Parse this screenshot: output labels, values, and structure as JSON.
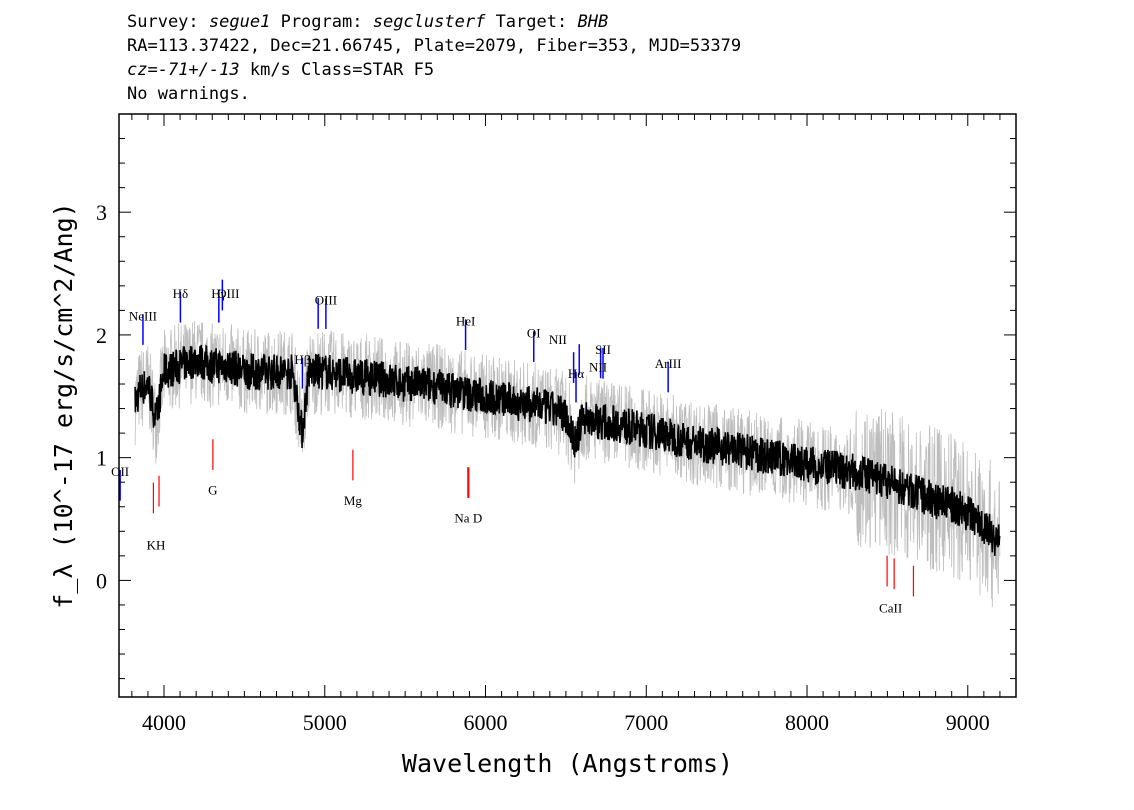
{
  "header": {
    "survey_label": "Survey:",
    "survey": "segue1",
    "program_label": "Program:",
    "program": "segclusterf",
    "target_label": "Target:",
    "target": "BHB",
    "line2": "RA=113.37422, Dec=21.66745, Plate=2079, Fiber=353, MJD=53379",
    "cz_label": "cz=",
    "cz_value": "-71+/-13",
    "cz_rest": " km/s Class=STAR F5",
    "line4": "No warnings."
  },
  "colors": {
    "flux": "#000000",
    "noise": "#bdbdbd",
    "emission": "#0000ff",
    "absorption": "#ff0000"
  },
  "chart_data": {
    "type": "line",
    "xlabel": "Wavelength (Angstroms)",
    "ylabel": "f_λ (10^-17 erg/s/cm^2/Ang)",
    "xlim": [
      3720,
      9300
    ],
    "ylim": [
      -0.95,
      3.8
    ],
    "xticks": [
      4000,
      5000,
      6000,
      7000,
      8000,
      9000
    ],
    "yticks": [
      0,
      1,
      2,
      3
    ],
    "series": [
      {
        "x": [
          3820,
          3850,
          3900,
          3950,
          4000,
          4100,
          4200,
          4300,
          4400,
          4500,
          4600,
          4700,
          4800,
          4860,
          4900,
          5000,
          5100,
          5200,
          5300,
          5400,
          5500,
          5600,
          5700,
          5800,
          5900,
          6000,
          6100,
          6200,
          6300,
          6400,
          6500,
          6563,
          6600,
          6700,
          6800,
          6900,
          7000,
          7100,
          7200,
          7300,
          7400,
          7500,
          7600,
          7700,
          7800,
          7900,
          8000,
          8100,
          8200,
          8300,
          8400,
          8500,
          8600,
          8700,
          8800,
          8900,
          9000,
          9100,
          9200
        ],
        "y": [
          1.45,
          1.55,
          1.6,
          1.3,
          1.7,
          1.75,
          1.8,
          1.75,
          1.75,
          1.7,
          1.7,
          1.7,
          1.7,
          1.2,
          1.7,
          1.7,
          1.68,
          1.66,
          1.65,
          1.63,
          1.6,
          1.6,
          1.58,
          1.55,
          1.52,
          1.5,
          1.48,
          1.45,
          1.43,
          1.4,
          1.35,
          1.1,
          1.33,
          1.3,
          1.28,
          1.25,
          1.22,
          1.2,
          1.15,
          1.12,
          1.1,
          1.08,
          1.05,
          1.02,
          1.0,
          0.98,
          0.95,
          0.92,
          0.9,
          0.88,
          0.85,
          0.8,
          0.75,
          0.7,
          0.65,
          0.62,
          0.55,
          0.45,
          0.3
        ]
      }
    ],
    "emission_lines": [
      {
        "label": "OII",
        "x": 3727
      },
      {
        "label": "NeIII",
        "x": 3869
      },
      {
        "label": "Hδ",
        "x": 4102
      },
      {
        "label": "Hγ",
        "x": 4341
      },
      {
        "label": "OIII",
        "x": 4363
      },
      {
        "label": "Hβ",
        "x": 4861
      },
      {
        "label": "OIII",
        "x": 4959
      },
      {
        "label": "OIII",
        "x": 5007
      },
      {
        "label": "HeI",
        "x": 5876
      },
      {
        "label": "OI",
        "x": 6300
      },
      {
        "label": "NII",
        "x": 6548
      },
      {
        "label": "Hα",
        "x": 6563
      },
      {
        "label": "NII",
        "x": 6583
      },
      {
        "label": "SII",
        "x": 6716
      },
      {
        "label": "SII",
        "x": 6731
      },
      {
        "label": "ArIII",
        "x": 7136
      }
    ],
    "absorption_lines": [
      {
        "label": "K",
        "x": 3934
      },
      {
        "label": "H",
        "x": 3969
      },
      {
        "label": "G",
        "x": 4304
      },
      {
        "label": "Mg",
        "x": 5175
      },
      {
        "label": "Na",
        "x": 5890
      },
      {
        "label": "D",
        "x": 5896
      },
      {
        "label": "CaII",
        "x": 8498
      },
      {
        "label": "CaII",
        "x": 8542
      },
      {
        "label": "CaII",
        "x": 8662
      }
    ],
    "emission_label_texts": [
      "OII",
      "NeIII",
      "Hδ",
      "Hγ",
      "OIII",
      "Hβ",
      "OIII",
      "HeI",
      "OI",
      "NII",
      "Hα",
      "SII",
      "NII",
      "ArIII"
    ],
    "absorption_label_texts": [
      "KH",
      "G",
      "Mg",
      "Na  D",
      "CaII"
    ]
  }
}
